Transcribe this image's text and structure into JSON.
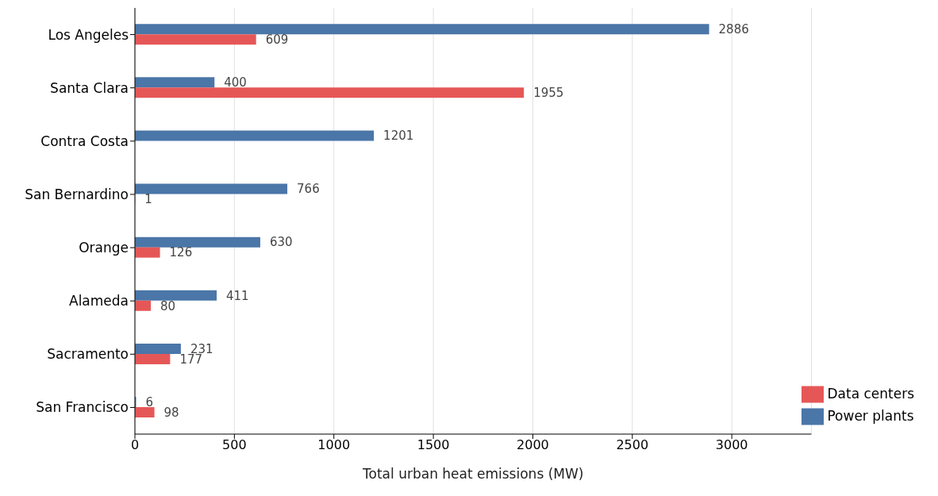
{
  "chart_data": {
    "type": "bar",
    "orientation": "horizontal",
    "xlabel": "Total urban heat emissions (MW)",
    "categories": [
      "Los Angeles",
      "Santa Clara",
      "Contra Costa",
      "San Bernardino",
      "Orange",
      "Alameda",
      "Sacramento",
      "San Francisco"
    ],
    "series": [
      {
        "name": "Power plants",
        "color": "#4a76a8",
        "values": [
          2886,
          400,
          1201,
          766,
          630,
          411,
          231,
          6
        ]
      },
      {
        "name": "Data centers",
        "color": "#e55757",
        "values": [
          609,
          1955,
          null,
          1,
          126,
          80,
          177,
          98
        ]
      }
    ],
    "xlim": [
      0,
      3400
    ],
    "xticks": [
      0,
      500,
      1000,
      1500,
      2000,
      2500,
      3000
    ],
    "grid": "x",
    "legend": "bottom right",
    "data_labels": true
  }
}
